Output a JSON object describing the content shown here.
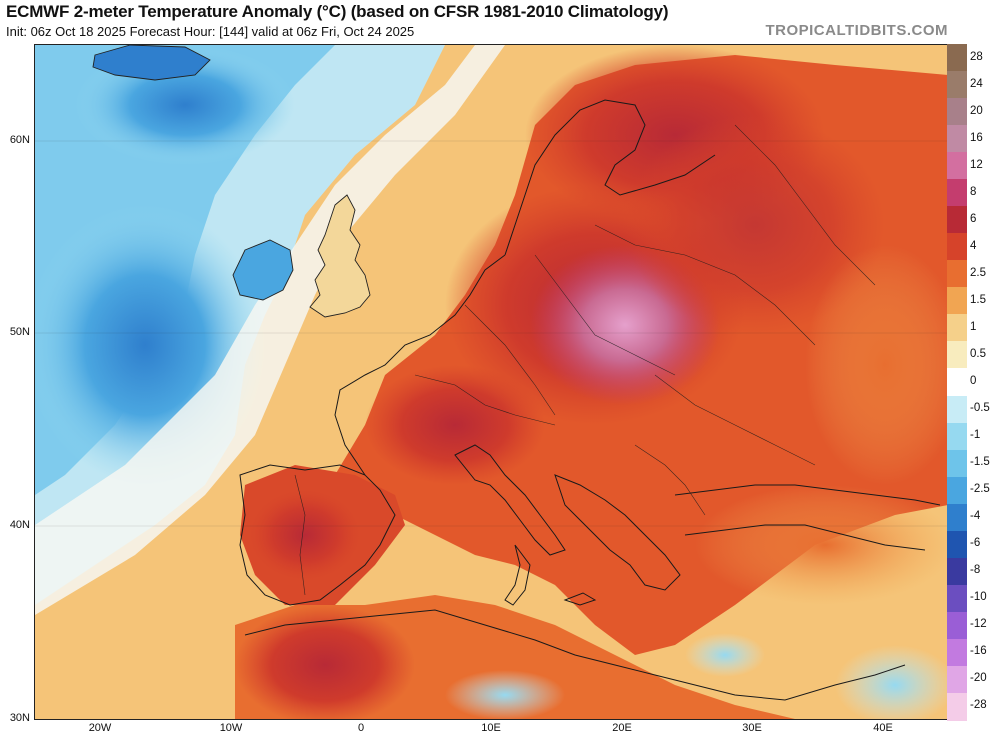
{
  "header": {
    "title": "ECMWF 2-meter Temperature Anomaly (°C) (based on CFSR 1981-2010 Climatology)",
    "subtitle": "Init: 06z Oct 18 2025   Forecast Hour: [144]   valid at 06z Fri, Oct 24 2025",
    "credit": "TROPICALTIDBITS.COM"
  },
  "map": {
    "latitude_labels": [
      "60N",
      "50N",
      "40N",
      "30N"
    ],
    "longitude_labels": [
      "20W",
      "10W",
      "0",
      "10E",
      "20E",
      "30E",
      "40E"
    ]
  },
  "colorbar": {
    "levels": [
      {
        "label": "28",
        "color": "#8a6a50"
      },
      {
        "label": "24",
        "color": "#9a7c6a"
      },
      {
        "label": "20",
        "color": "#a8808a"
      },
      {
        "label": "16",
        "color": "#c08aa4"
      },
      {
        "label": "12",
        "color": "#d36fa0"
      },
      {
        "label": "8",
        "color": "#c43d6e"
      },
      {
        "label": "6",
        "color": "#b82a36"
      },
      {
        "label": "4",
        "color": "#d6432a"
      },
      {
        "label": "2.5",
        "color": "#e86e30"
      },
      {
        "label": "1.5",
        "color": "#f1a552"
      },
      {
        "label": "1",
        "color": "#f5d08a"
      },
      {
        "label": "0.5",
        "color": "#f8ecbe"
      },
      {
        "label": "0",
        "color": "#ffffff"
      },
      {
        "label": "-0.5",
        "color": "#c8ecf6"
      },
      {
        "label": "-1",
        "color": "#96d9f0"
      },
      {
        "label": "-1.5",
        "color": "#6ec4ea"
      },
      {
        "label": "-2.5",
        "color": "#4aa6e0"
      },
      {
        "label": "-4",
        "color": "#2f7fcd"
      },
      {
        "label": "-6",
        "color": "#1f55b0"
      },
      {
        "label": "-8",
        "color": "#3a3aa0"
      },
      {
        "label": "-10",
        "color": "#6b4ec0"
      },
      {
        "label": "-12",
        "color": "#9a5ed6"
      },
      {
        "label": "-16",
        "color": "#c27ae0"
      },
      {
        "label": "-20",
        "color": "#e0a6e6"
      },
      {
        "label": "-28",
        "color": "#f4cce8"
      }
    ]
  }
}
